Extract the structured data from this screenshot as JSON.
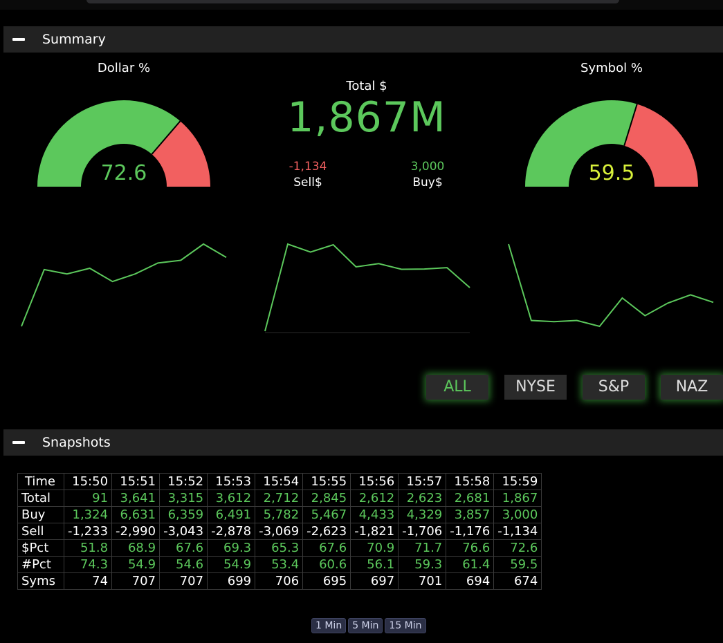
{
  "summary": {
    "title": "Summary",
    "dollar_gauge": {
      "title": "Dollar %",
      "value": "72.6",
      "percent": 72.6,
      "value_color": "#5cc85c"
    },
    "symbol_gauge": {
      "title": "Symbol %",
      "value": "59.5",
      "percent": 59.5,
      "value_color": "#d7ef3a"
    },
    "total": {
      "label": "Total $",
      "value": "1,867M"
    },
    "sell": {
      "value": "-1,134",
      "label": "Sell$"
    },
    "buy": {
      "value": "3,000",
      "label": "Buy$"
    },
    "colors": {
      "green": "#5cc85c",
      "red": "#f26060"
    },
    "sparklines": [
      [
        51.8,
        68.9,
        67.6,
        69.3,
        65.3,
        67.6,
        70.9,
        71.7,
        76.6,
        72.6
      ],
      [
        91,
        3641,
        3315,
        3612,
        2712,
        2845,
        2612,
        2623,
        2681,
        1867
      ],
      [
        74.3,
        54.9,
        54.6,
        54.9,
        53.4,
        60.6,
        56.1,
        59.3,
        61.4,
        59.5
      ]
    ],
    "filters": [
      {
        "label": "ALL",
        "active": true,
        "glow": true
      },
      {
        "label": "NYSE",
        "active": false,
        "glow": false
      },
      {
        "label": "S&P",
        "active": false,
        "glow": true
      },
      {
        "label": "NAZ",
        "active": false,
        "glow": true
      }
    ]
  },
  "snapshots": {
    "title": "Snapshots",
    "header_label": "Time",
    "times": [
      "15:50",
      "15:51",
      "15:52",
      "15:53",
      "15:54",
      "15:55",
      "15:56",
      "15:57",
      "15:58",
      "15:59"
    ],
    "rows": [
      {
        "label": "Total",
        "color": "green",
        "values": [
          "91",
          "3,641",
          "3,315",
          "3,612",
          "2,712",
          "2,845",
          "2,612",
          "2,623",
          "2,681",
          "1,867"
        ]
      },
      {
        "label": "Buy",
        "color": "green",
        "values": [
          "1,324",
          "6,631",
          "6,359",
          "6,491",
          "5,782",
          "5,467",
          "4,433",
          "4,329",
          "3,857",
          "3,000"
        ]
      },
      {
        "label": "Sell",
        "color": "white",
        "values": [
          "-1,233",
          "-2,990",
          "-3,043",
          "-2,878",
          "-3,069",
          "-2,623",
          "-1,821",
          "-1,706",
          "-1,176",
          "-1,134"
        ]
      },
      {
        "label": "$Pct",
        "color": "green",
        "values": [
          "51.8",
          "68.9",
          "67.6",
          "69.3",
          "65.3",
          "67.6",
          "70.9",
          "71.7",
          "76.6",
          "72.6"
        ]
      },
      {
        "label": "#Pct",
        "color": "green",
        "values": [
          "74.3",
          "54.9",
          "54.6",
          "54.9",
          "53.4",
          "60.6",
          "56.1",
          "59.3",
          "61.4",
          "59.5"
        ]
      },
      {
        "label": "Syms",
        "color": "white",
        "values": [
          "74",
          "707",
          "707",
          "699",
          "706",
          "695",
          "697",
          "701",
          "694",
          "674"
        ]
      }
    ],
    "intervals": [
      "1 Min",
      "5 Min",
      "15 Min"
    ]
  }
}
